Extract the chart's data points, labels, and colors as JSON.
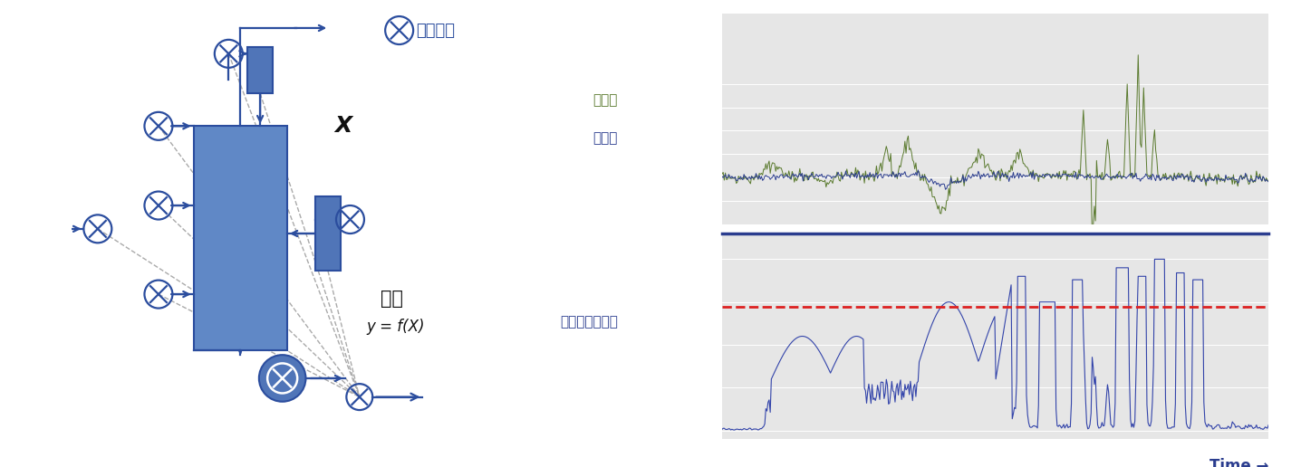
{
  "fig_width": 14.36,
  "fig_height": 5.16,
  "background_color": "#ffffff",
  "chart_bg_color": "#e6e6e6",
  "top_chart": {
    "actual_color": "#5a7a2e",
    "predicted_color": "#2b3d8f",
    "label_actual": "実測値",
    "label_predicted": "予測値",
    "label_color_actual": "#5a7a2e",
    "label_color_predicted": "#2b3d8f"
  },
  "bottom_chart": {
    "line_color": "#3344aa",
    "threshold_color": "#dd2222",
    "label": "異常度（誤差）",
    "label_color": "#2b3d8f",
    "time_label": "Time →",
    "time_label_color": "#2b3d8f"
  },
  "separator_color": "#2b3d8f",
  "blue_fill": "#6088c6",
  "blue_dark": "#2b4d9e",
  "blue_mid": "#5075b8",
  "arrow_color": "#2b4d9e",
  "dashed_color": "#aaaaaa",
  "diagram_sensor_label": "センサー",
  "diagram_predict_label": "予測",
  "diagram_formula": "y = f(X)",
  "diagram_X": "X"
}
